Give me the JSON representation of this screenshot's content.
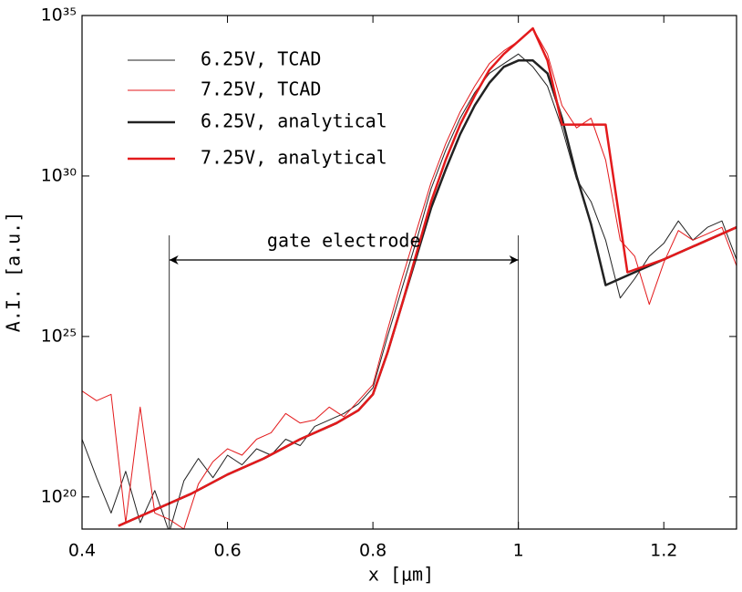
{
  "chart_data": {
    "type": "line",
    "xlabel": "x [μm]",
    "ylabel": "A.I. [a.u.]",
    "xlim": [
      0.4,
      1.3
    ],
    "xticks": [
      0.4,
      0.6,
      0.8,
      1,
      1.2
    ],
    "ylim": [
      1e+19,
      1e+35
    ],
    "yscale": "log",
    "yticks": [
      {
        "value": 1e+20,
        "label": "10²⁰"
      },
      {
        "value": 1e+25,
        "label": "10²⁵"
      },
      {
        "value": 1e+30,
        "label": "10³⁰"
      },
      {
        "value": 1e+35,
        "label": "10³⁵"
      }
    ],
    "annotation": {
      "text": "gate electrode",
      "x": [
        0.52,
        1
      ]
    },
    "series": [
      {
        "name": "6.25V, TCAD",
        "color": "#222222",
        "linewidth": 1,
        "x": [
          0.4,
          0.42,
          0.44,
          0.46,
          0.48,
          0.5,
          0.52,
          0.54,
          0.56,
          0.58,
          0.6,
          0.62,
          0.64,
          0.66,
          0.68,
          0.7,
          0.72,
          0.74,
          0.76,
          0.78,
          0.8,
          0.82,
          0.84,
          0.86,
          0.88,
          0.9,
          0.92,
          0.94,
          0.96,
          0.98,
          1,
          1.02,
          1.04,
          1.06,
          1.08,
          1.1,
          1.12,
          1.14,
          1.16,
          1.18,
          1.2,
          1.22,
          1.24,
          1.26,
          1.28,
          1.3
        ],
        "values": [
          6.31e+21,
          3.98e+20,
          3.16e+19,
          6.31e+20,
          1.58e+19,
          1.58e+20,
          7.94e+18,
          3.16e+20,
          1.58e+21,
          3.98e+20,
          2e+21,
          1e+21,
          3.16e+21,
          2e+21,
          6.31e+21,
          3.98e+21,
          1.58e+22,
          2.51e+22,
          3.98e+22,
          7.94e+22,
          2.51e+23,
          1e+25,
          3.16e+26,
          1e+28,
          3.98e+29,
          6.31e+30,
          6.31e+31,
          3.98e+32,
          1.58e+33,
          3.16e+33,
          6.31e+33,
          2.51e+33,
          6.31e+32,
          3.16e+31,
          7.94e+29,
          1.58e+29,
          1e+28,
          1.58e+26,
          6.31e+26,
          3.16e+27,
          7.94e+27,
          3.98e+28,
          1e+28,
          2.51e+28,
          3.98e+28,
          2.51e+27
        ]
      },
      {
        "name": "7.25V, TCAD",
        "color": "#e31a1c",
        "linewidth": 1,
        "x": [
          0.4,
          0.42,
          0.44,
          0.46,
          0.48,
          0.5,
          0.52,
          0.54,
          0.56,
          0.58,
          0.6,
          0.62,
          0.64,
          0.66,
          0.68,
          0.7,
          0.72,
          0.74,
          0.76,
          0.78,
          0.8,
          0.82,
          0.84,
          0.86,
          0.88,
          0.9,
          0.92,
          0.94,
          0.96,
          0.98,
          1,
          1.02,
          1.04,
          1.06,
          1.08,
          1.1,
          1.12,
          1.14,
          1.16,
          1.18,
          1.2,
          1.22,
          1.24,
          1.26,
          1.28,
          1.3
        ],
        "values": [
          2e+23,
          1e+23,
          1.58e+23,
          1.58e+19,
          6.31e+22,
          3.16e+19,
          2e+19,
          1e+19,
          2.51e+20,
          1.26e+21,
          3.16e+21,
          2e+21,
          6.31e+21,
          1e+22,
          3.98e+22,
          2e+22,
          2.51e+22,
          6.31e+22,
          3.16e+22,
          1e+23,
          3.16e+23,
          1.58e+25,
          6.31e+26,
          2e+28,
          6.31e+29,
          1e+31,
          1e+32,
          6.31e+32,
          3.16e+33,
          7.94e+33,
          1.58e+34,
          3.98e+34,
          6.31e+33,
          1.58e+32,
          3.16e+31,
          6.31e+31,
          3.16e+30,
          1e+28,
          3.16e+27,
          1e+26,
          2e+27,
          2e+28,
          1e+28,
          1.58e+28,
          2.51e+28,
          1.58e+27
        ]
      },
      {
        "name": "6.25V, analytical",
        "color": "#222222",
        "linewidth": 2.5,
        "x": [
          0.45,
          0.5,
          0.55,
          0.6,
          0.65,
          0.7,
          0.75,
          0.78,
          0.8,
          0.82,
          0.84,
          0.86,
          0.88,
          0.9,
          0.92,
          0.94,
          0.96,
          0.98,
          1,
          1.02,
          1.04,
          1.06,
          1.08,
          1.1,
          1.12,
          1.15,
          1.2,
          1.25,
          1.3
        ],
        "values": [
          1.26e+19,
          3.98e+19,
          1.26e+20,
          5.01e+20,
          1.58e+21,
          6.31e+21,
          2e+22,
          5.01e+22,
          1.58e+23,
          3.16e+24,
          1e+26,
          3.16e+27,
          1e+29,
          1.58e+30,
          2e+31,
          1.58e+32,
          7.94e+32,
          2.51e+33,
          3.98e+33,
          3.98e+33,
          1.58e+33,
          6.31e+31,
          1e+30,
          3.16e+28,
          3.98e+26,
          7.94e+26,
          2.51e+27,
          7.94e+27,
          2.51e+28
        ]
      },
      {
        "name": "7.25V, analytical",
        "color": "#e31a1c",
        "linewidth": 2.5,
        "x": [
          0.45,
          0.5,
          0.55,
          0.6,
          0.65,
          0.7,
          0.75,
          0.78,
          0.8,
          0.82,
          0.84,
          0.86,
          0.88,
          0.9,
          0.92,
          0.94,
          0.96,
          0.98,
          1,
          1.02,
          1.04,
          1.06,
          1.08,
          1.1,
          1.12,
          1.15,
          1.2,
          1.25,
          1.3
        ],
        "values": [
          1.26e+19,
          3.98e+19,
          1.26e+20,
          5.01e+20,
          1.58e+21,
          6.31e+21,
          2e+22,
          5.01e+22,
          1.58e+23,
          3.16e+24,
          1e+26,
          3.98e+27,
          1.58e+29,
          3.16e+30,
          3.98e+31,
          3.16e+32,
          2e+33,
          6.31e+33,
          1.58e+34,
          3.98e+34,
          3.98e+33,
          3.98e+31,
          3.98e+31,
          3.98e+31,
          3.98e+31,
          1e+27,
          2.51e+27,
          7.94e+27,
          2.51e+28
        ]
      }
    ]
  }
}
